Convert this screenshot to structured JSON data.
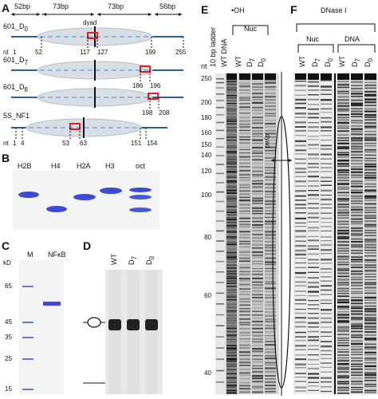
{
  "panels": {
    "A": {
      "letter": "A",
      "spans": [
        "52bp",
        "73bp",
        "73bp",
        "56bp"
      ],
      "dyad_label": "dyad",
      "constructs": [
        {
          "name": "601_D",
          "sub": "0",
          "positions": [
            "117",
            "127",
            "199",
            "255"
          ],
          "left_labels": [
            "nt",
            "1",
            "52"
          ]
        },
        {
          "name": "601_D",
          "sub": "7",
          "positions": [
            "186",
            "196"
          ]
        },
        {
          "name": "601_D",
          "sub": "8",
          "positions": [
            "198",
            "208"
          ]
        },
        {
          "name": "5S_NF1",
          "positions": [
            "53",
            "63",
            "151",
            "154"
          ],
          "left_labels": [
            "nt",
            "1",
            "4"
          ]
        }
      ]
    },
    "B": {
      "letter": "B",
      "lanes": [
        "H2B",
        "H4",
        "H2A",
        "H3",
        "oct"
      ]
    },
    "C": {
      "letter": "C",
      "lanes": [
        "M",
        "NFκB"
      ],
      "unit": "kD",
      "markers": [
        "65",
        "45",
        "35",
        "25",
        "15"
      ]
    },
    "D": {
      "letter": "D",
      "lanes": [
        "WT",
        "D",
        "D"
      ],
      "lane_subs": [
        "",
        "7",
        "0"
      ]
    },
    "E": {
      "letter": "E",
      "title": "•OH",
      "lanes": [
        "10 bp ladder",
        "WT DNA",
        "WT",
        "D",
        "D"
      ],
      "lane_subs": [
        "",
        "",
        "",
        "7",
        "0"
      ],
      "group_label": "Nuc",
      "nt_label": "nt",
      "nt_ticks": [
        "250",
        "200",
        "180",
        "160",
        "150",
        "140",
        "120",
        "100",
        "80",
        "60",
        "40"
      ],
      "dyad_label": "dyad"
    },
    "F": {
      "letter": "F",
      "title": "DNase I",
      "groups": [
        "Nuc",
        "DNA"
      ],
      "lanes": [
        "WT",
        "D",
        "D",
        "WT",
        "D",
        "D"
      ],
      "lane_subs": [
        "",
        "7",
        "0",
        "",
        "7",
        "0"
      ]
    }
  },
  "colors": {
    "dna_line": "#2f5f8f",
    "dashed": "#7fa6d6",
    "nucleosome": "#d9dde4",
    "red_marker": "#d22",
    "coomassie": "#3c4bd0"
  }
}
